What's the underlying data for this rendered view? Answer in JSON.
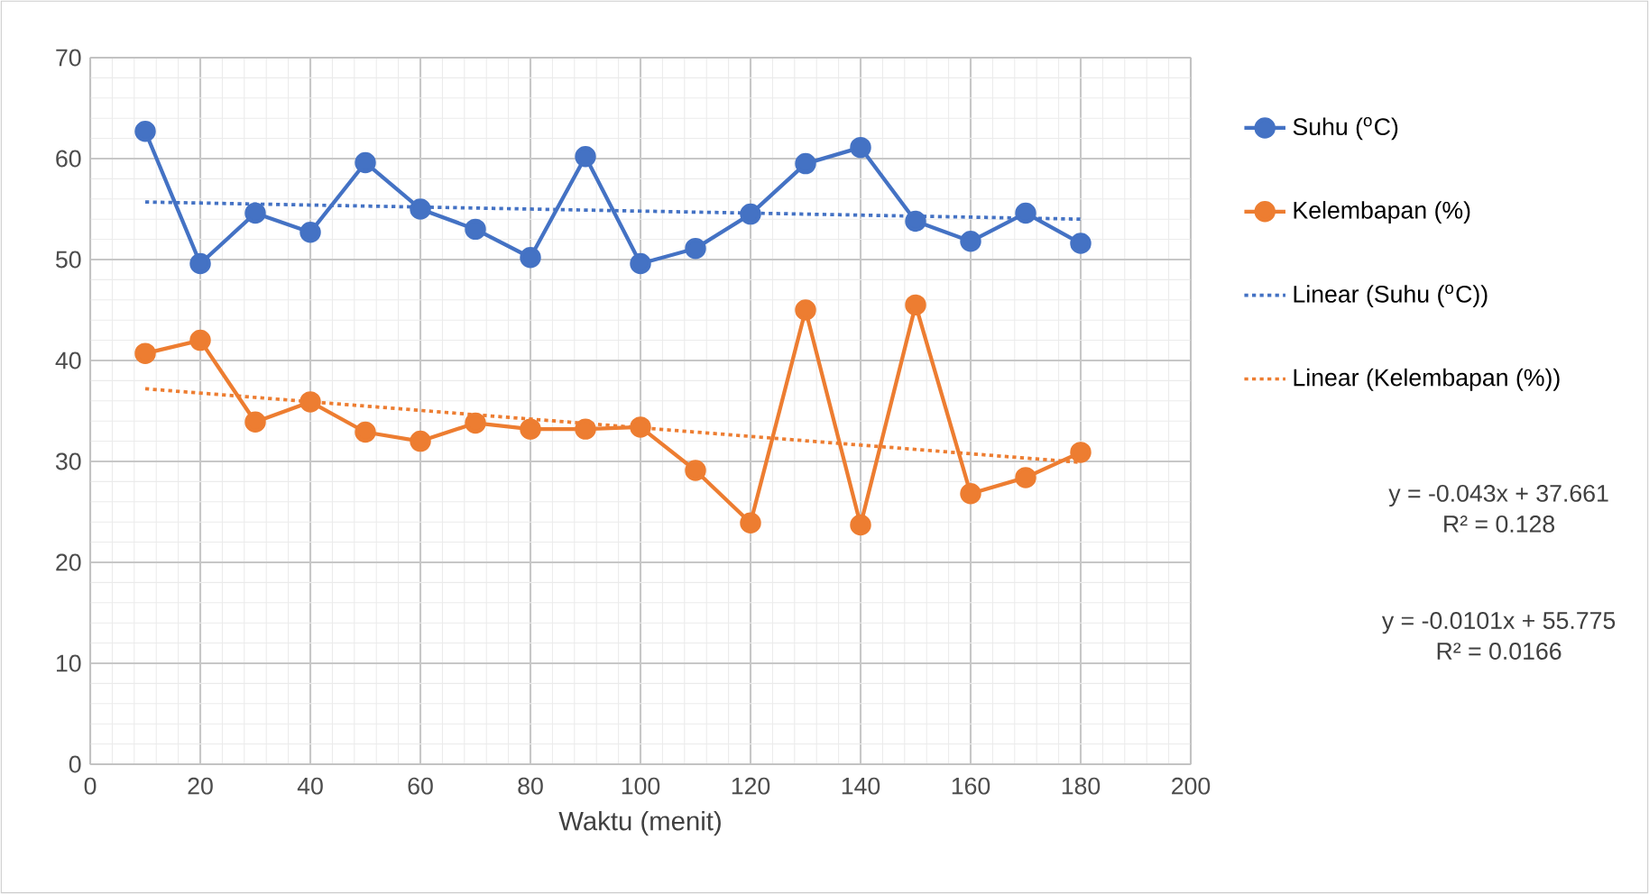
{
  "chart_data": {
    "type": "line",
    "xlabel": "Waktu (menit)",
    "xlim": [
      0,
      200
    ],
    "xticks": [
      0,
      20,
      40,
      60,
      80,
      100,
      120,
      140,
      160,
      180,
      200
    ],
    "ylim": [
      0,
      70
    ],
    "yticks": [
      0,
      10,
      20,
      30,
      40,
      50,
      60,
      70
    ],
    "grid": true,
    "legend": "right",
    "series": [
      {
        "name": "Suhu ($^{o}$C)",
        "color": "#4472c4",
        "marker": "circle",
        "x": [
          10,
          20,
          30,
          40,
          50,
          60,
          70,
          80,
          90,
          100,
          110,
          120,
          130,
          140,
          150,
          160,
          170,
          180
        ],
        "values": [
          62.7,
          49.6,
          54.6,
          52.7,
          59.6,
          55,
          53,
          50.2,
          60.2,
          49.6,
          51.1,
          54.5,
          59.5,
          61.1,
          53.8,
          51.8,
          54.6,
          51.6
        ]
      },
      {
        "name": "Kelembapan (%)",
        "color": "#ed7d31",
        "marker": "circle",
        "x": [
          10,
          20,
          30,
          40,
          50,
          60,
          70,
          80,
          90,
          100,
          110,
          120,
          130,
          140,
          150,
          160,
          170,
          180
        ],
        "values": [
          40.7,
          42,
          33.9,
          35.9,
          32.9,
          32,
          33.8,
          33.2,
          33.2,
          33.4,
          29.1,
          23.9,
          45,
          23.7,
          45.5,
          26.8,
          28.4,
          30.9
        ]
      },
      {
        "name": "Linear (Suhu ($^{o}$C))",
        "color": "#4472c4",
        "marker": "none",
        "line_style": "dotted",
        "x": [
          10,
          180
        ],
        "values": [
          55.7,
          54
        ]
      },
      {
        "name": "Linear (Kelembapan (%))",
        "color": "#ed7d31",
        "marker": "none",
        "line_style": "dotted",
        "x": [
          10,
          180
        ],
        "values": [
          37.2,
          29.9
        ]
      }
    ],
    "annotations": [
      "y = -0.043x + 37.661",
      "R² = 0.128",
      "y = -0.0101x + 55.775",
      "R² = 0.0166"
    ]
  }
}
